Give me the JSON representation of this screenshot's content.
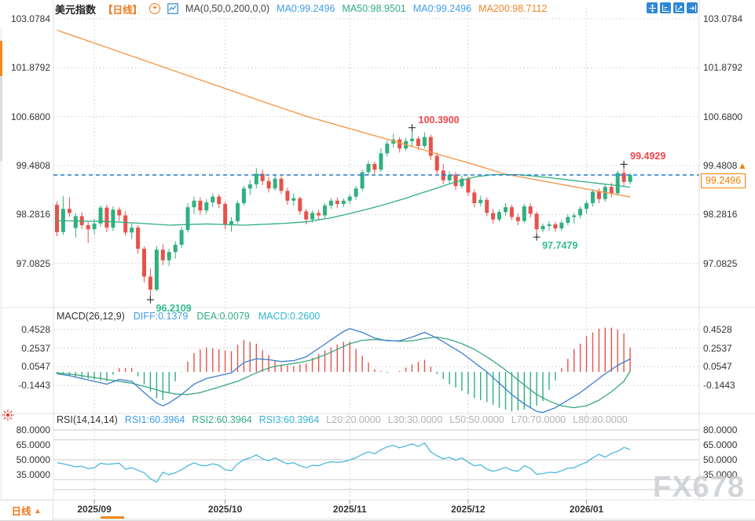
{
  "header": {
    "symbol": "美元指数",
    "period_tag": "【日线】",
    "add_icon": "+",
    "ma_settings": "MA(0,50,0,200,0,0)",
    "ma_values": [
      {
        "label": "MA0:99.2496",
        "color": "#3e9de6"
      },
      {
        "label": "MA50:98.9501",
        "color": "#2fae7d"
      },
      {
        "label": "MA0:99.2496",
        "color": "#3e9de6"
      },
      {
        "label": "MA200:98.7112",
        "color": "#f0862d"
      }
    ]
  },
  "toolbar": {
    "icons": [
      "pan-tool",
      "axis-scale-tool",
      "pointer-tool",
      "collapse-panel-tool"
    ]
  },
  "macd_header": {
    "title": "MACD(26,12,9)",
    "items": [
      {
        "label": "DIFF:0.1379",
        "color": "#3e9de6"
      },
      {
        "label": "DEA:0.0079",
        "color": "#2fae7d"
      },
      {
        "label": "MACD:0.2600",
        "color": "#2fb6d8"
      }
    ]
  },
  "rsi_header": {
    "title": "RSI(14,14,14)",
    "items": [
      {
        "label": "RSI1:60.3964",
        "color": "#3e9de6"
      },
      {
        "label": "RSI2:60.3964",
        "color": "#2fae7d"
      },
      {
        "label": "RSI3:60.3964",
        "color": "#2fb6d8"
      }
    ],
    "levels": [
      "L20:20.0000",
      "L30:30.0000",
      "L50:50.0000",
      "L70:70.0000",
      "L80:80.0000"
    ]
  },
  "footer": {
    "period_label": "日线",
    "arrow": "▲"
  },
  "watermark": "FX678",
  "current_price": {
    "label": "99.2496",
    "value": 99.2496
  },
  "chart_data": {
    "type": "candlestick",
    "panes": [
      "price",
      "MACD",
      "RSI"
    ],
    "colors": {
      "up": "#2fb07f",
      "down": "#e5534b",
      "ma50": "#2fae82",
      "ma200": "#f49a4c",
      "diff": "#3a7fd0",
      "dea": "#3aa87c",
      "rsi": "#3fb3dc",
      "price_line": "#1d7ad4",
      "hist_pos": "#e5534b",
      "hist_neg": "#2fb07f",
      "grid": "#cccccc",
      "accent_orange": "#f08000"
    },
    "price_axis": {
      "ticks": [
        103.0784,
        101.8792,
        100.68,
        99.4808,
        98.2816,
        97.0825
      ],
      "labels": [
        "103.0784",
        "101.8792",
        "100.6800",
        "99.4808",
        "98.2816",
        "97.0825"
      ]
    },
    "macd_axis": {
      "ticks": [
        0.4528,
        0.2537,
        0.0547,
        -0.1443
      ],
      "labels": [
        "0.4528",
        "0.2537",
        "0.0547",
        "-0.1443"
      ]
    },
    "rsi_axis": {
      "tick_values": [
        80,
        65,
        50,
        35
      ],
      "labels": [
        "80.0000",
        "65.0000",
        "50.0000",
        "35.0000"
      ],
      "grid_levels": [
        80,
        70,
        50,
        30,
        20
      ]
    },
    "months": [
      {
        "label": "2025/09",
        "index": 6
      },
      {
        "label": "2025/10",
        "index": 27
      },
      {
        "label": "2025/11",
        "index": 47
      },
      {
        "label": "2025/12",
        "index": 66
      },
      {
        "label": "2026/01",
        "index": 85
      }
    ],
    "candles": [
      [
        98.52,
        98.6,
        97.75,
        97.85
      ],
      [
        97.85,
        98.73,
        97.78,
        98.42
      ],
      [
        98.42,
        98.7,
        98.22,
        98.32
      ],
      [
        97.95,
        98.32,
        97.72,
        98.24
      ],
      [
        98.24,
        98.33,
        97.92,
        98.02
      ],
      [
        98.02,
        98.1,
        97.58,
        97.92
      ],
      [
        97.92,
        98.18,
        97.8,
        98.06
      ],
      [
        98.06,
        98.5,
        97.98,
        98.45
      ],
      [
        98.45,
        98.52,
        97.85,
        97.96
      ],
      [
        97.96,
        98.48,
        97.88,
        98.4
      ],
      [
        98.4,
        98.46,
        98.12,
        98.26
      ],
      [
        98.26,
        98.36,
        97.76,
        97.84
      ],
      [
        97.84,
        98.06,
        97.68,
        97.96
      ],
      [
        97.96,
        98.02,
        97.32,
        97.44
      ],
      [
        97.44,
        97.5,
        96.62,
        96.76
      ],
      [
        96.76,
        96.96,
        96.2109,
        96.44
      ],
      [
        96.44,
        97.5,
        96.4,
        97.42
      ],
      [
        97.42,
        97.56,
        97.04,
        97.16
      ],
      [
        97.16,
        97.44,
        97.02,
        97.36
      ],
      [
        97.36,
        97.62,
        97.2,
        97.54
      ],
      [
        97.54,
        97.98,
        97.46,
        97.9
      ],
      [
        97.9,
        98.56,
        97.84,
        98.46
      ],
      [
        98.46,
        98.72,
        98.3,
        98.62
      ],
      [
        98.62,
        98.7,
        98.28,
        98.38
      ],
      [
        98.38,
        98.66,
        98.3,
        98.58
      ],
      [
        98.58,
        98.8,
        98.46,
        98.72
      ],
      [
        98.72,
        98.78,
        98.44,
        98.54
      ],
      [
        98.54,
        98.6,
        97.92,
        98.04
      ],
      [
        98.04,
        98.22,
        97.86,
        98.12
      ],
      [
        98.12,
        98.62,
        98.06,
        98.56
      ],
      [
        98.56,
        98.98,
        98.5,
        98.92
      ],
      [
        98.92,
        99.12,
        98.76,
        99.02
      ],
      [
        99.02,
        99.42,
        98.92,
        99.28
      ],
      [
        99.28,
        99.38,
        99.0,
        99.1
      ],
      [
        99.1,
        99.2,
        98.82,
        98.92
      ],
      [
        98.92,
        99.26,
        98.86,
        99.16
      ],
      [
        99.16,
        99.22,
        98.78,
        98.86
      ],
      [
        98.86,
        98.94,
        98.52,
        98.62
      ],
      [
        98.62,
        98.8,
        98.5,
        98.68
      ],
      [
        98.68,
        98.72,
        98.28,
        98.36
      ],
      [
        98.36,
        98.42,
        98.04,
        98.16
      ],
      [
        98.16,
        98.38,
        98.08,
        98.32
      ],
      [
        98.32,
        98.4,
        98.14,
        98.26
      ],
      [
        98.26,
        98.56,
        98.2,
        98.5
      ],
      [
        98.5,
        98.68,
        98.42,
        98.62
      ],
      [
        98.62,
        98.7,
        98.44,
        98.54
      ],
      [
        98.54,
        98.68,
        98.46,
        98.62
      ],
      [
        98.62,
        98.78,
        98.54,
        98.72
      ],
      [
        98.72,
        98.98,
        98.64,
        98.92
      ],
      [
        98.92,
        99.38,
        98.86,
        99.32
      ],
      [
        99.32,
        99.6,
        99.24,
        99.52
      ],
      [
        99.52,
        99.58,
        99.28,
        99.38
      ],
      [
        99.38,
        99.9,
        99.32,
        99.78
      ],
      [
        99.78,
        100.1,
        99.7,
        100.02
      ],
      [
        100.02,
        100.26,
        99.92,
        100.12
      ],
      [
        100.12,
        100.18,
        99.8,
        99.9
      ],
      [
        99.9,
        100.16,
        99.84,
        100.08
      ],
      [
        100.08,
        100.39,
        99.96,
        100.14
      ],
      [
        100.14,
        100.2,
        99.86,
        99.96
      ],
      [
        99.96,
        100.3,
        99.9,
        100.18
      ],
      [
        100.18,
        100.24,
        99.62,
        99.72
      ],
      [
        99.72,
        99.8,
        99.28,
        99.36
      ],
      [
        99.36,
        99.52,
        99.02,
        99.12
      ],
      [
        99.12,
        99.34,
        99.04,
        99.26
      ],
      [
        99.26,
        99.32,
        98.88,
        98.98
      ],
      [
        98.98,
        99.24,
        98.92,
        99.16
      ],
      [
        99.16,
        99.22,
        98.74,
        98.82
      ],
      [
        98.82,
        98.9,
        98.46,
        98.56
      ],
      [
        98.56,
        98.74,
        98.48,
        98.64
      ],
      [
        98.64,
        98.7,
        98.24,
        98.32
      ],
      [
        98.32,
        98.42,
        98.06,
        98.16
      ],
      [
        98.16,
        98.4,
        98.1,
        98.34
      ],
      [
        98.34,
        98.56,
        98.26,
        98.46
      ],
      [
        98.46,
        98.52,
        98.14,
        98.22
      ],
      [
        98.22,
        98.3,
        98.02,
        98.12
      ],
      [
        98.12,
        98.54,
        98.08,
        98.48
      ],
      [
        98.48,
        98.56,
        98.2,
        98.3
      ],
      [
        98.3,
        98.36,
        97.7479,
        97.92
      ],
      [
        97.92,
        98.06,
        97.84,
        98.0
      ],
      [
        98.0,
        98.12,
        97.88,
        98.04
      ],
      [
        98.04,
        98.1,
        97.86,
        97.94
      ],
      [
        97.94,
        98.14,
        97.88,
        98.08
      ],
      [
        98.08,
        98.28,
        98.02,
        98.22
      ],
      [
        98.22,
        98.32,
        98.06,
        98.26
      ],
      [
        98.26,
        98.48,
        98.18,
        98.42
      ],
      [
        98.42,
        98.62,
        98.3,
        98.56
      ],
      [
        98.56,
        98.9,
        98.48,
        98.84
      ],
      [
        98.84,
        98.92,
        98.56,
        98.66
      ],
      [
        98.66,
        99.02,
        98.6,
        98.96
      ],
      [
        98.96,
        99.06,
        98.7,
        98.8
      ],
      [
        98.8,
        99.36,
        98.74,
        99.3
      ],
      [
        99.3,
        99.4929,
        98.98,
        99.08
      ],
      [
        99.08,
        99.3,
        99.02,
        99.2496
      ]
    ],
    "ma50_points": [
      [
        0,
        98.13
      ],
      [
        8,
        98.11
      ],
      [
        14,
        98.06
      ],
      [
        18,
        98.02
      ],
      [
        24,
        98.05
      ],
      [
        30,
        98.02
      ],
      [
        36,
        98.06
      ],
      [
        40,
        98.1
      ],
      [
        44,
        98.2
      ],
      [
        48,
        98.34
      ],
      [
        52,
        98.5
      ],
      [
        56,
        98.68
      ],
      [
        60,
        98.88
      ],
      [
        64,
        99.08
      ],
      [
        67,
        99.2
      ],
      [
        70,
        99.26
      ],
      [
        74,
        99.26
      ],
      [
        78,
        99.2
      ],
      [
        82,
        99.13
      ],
      [
        86,
        99.06
      ],
      [
        90,
        98.99
      ],
      [
        92,
        98.9501
      ]
    ],
    "ma200_points": [
      [
        0,
        102.8
      ],
      [
        10,
        102.27
      ],
      [
        20,
        101.74
      ],
      [
        27,
        101.37
      ],
      [
        34,
        101.0
      ],
      [
        40,
        100.69
      ],
      [
        46,
        100.43
      ],
      [
        52,
        100.17
      ],
      [
        57,
        99.95
      ],
      [
        62,
        99.72
      ],
      [
        66,
        99.55
      ],
      [
        72,
        99.27
      ],
      [
        77,
        99.13
      ],
      [
        82,
        98.99
      ],
      [
        87,
        98.85
      ],
      [
        92,
        98.7112
      ]
    ],
    "macd": {
      "histogram_rule": "2*(DIFF-DEA)",
      "diff_points": [
        [
          0,
          -0.02
        ],
        [
          2,
          -0.04
        ],
        [
          4,
          -0.07
        ],
        [
          6,
          -0.1
        ],
        [
          8,
          -0.13
        ],
        [
          10,
          -0.08
        ],
        [
          12,
          -0.1
        ],
        [
          14,
          -0.22
        ],
        [
          16,
          -0.33
        ],
        [
          17,
          -0.36
        ],
        [
          18,
          -0.33
        ],
        [
          20,
          -0.24
        ],
        [
          22,
          -0.13
        ],
        [
          24,
          -0.07
        ],
        [
          26,
          -0.04
        ],
        [
          28,
          -0.01
        ],
        [
          30,
          0.1
        ],
        [
          32,
          0.14
        ],
        [
          34,
          0.13
        ],
        [
          36,
          0.11
        ],
        [
          38,
          0.12
        ],
        [
          40,
          0.16
        ],
        [
          42,
          0.25
        ],
        [
          44,
          0.34
        ],
        [
          46,
          0.43
        ],
        [
          47,
          0.46
        ],
        [
          49,
          0.42
        ],
        [
          51,
          0.36
        ],
        [
          53,
          0.33
        ],
        [
          55,
          0.33
        ],
        [
          57,
          0.37
        ],
        [
          59,
          0.42
        ],
        [
          61,
          0.36
        ],
        [
          63,
          0.28
        ],
        [
          65,
          0.2
        ],
        [
          67,
          0.1
        ],
        [
          69,
          0.0
        ],
        [
          71,
          -0.12
        ],
        [
          73,
          -0.24
        ],
        [
          75,
          -0.34
        ],
        [
          77,
          -0.42
        ],
        [
          78,
          -0.43
        ],
        [
          80,
          -0.38
        ],
        [
          82,
          -0.3
        ],
        [
          84,
          -0.22
        ],
        [
          86,
          -0.12
        ],
        [
          88,
          -0.02
        ],
        [
          90,
          0.07
        ],
        [
          92,
          0.1379
        ]
      ],
      "dea_points": [
        [
          0,
          -0.01
        ],
        [
          3,
          -0.03
        ],
        [
          6,
          -0.06
        ],
        [
          9,
          -0.09
        ],
        [
          12,
          -0.12
        ],
        [
          15,
          -0.17
        ],
        [
          17,
          -0.21
        ],
        [
          19,
          -0.235
        ],
        [
          21,
          -0.24
        ],
        [
          23,
          -0.22
        ],
        [
          25,
          -0.18
        ],
        [
          27,
          -0.14
        ],
        [
          29,
          -0.1
        ],
        [
          31,
          -0.04
        ],
        [
          33,
          0.02
        ],
        [
          35,
          0.06
        ],
        [
          37,
          0.08
        ],
        [
          39,
          0.1
        ],
        [
          41,
          0.13
        ],
        [
          43,
          0.18
        ],
        [
          45,
          0.24
        ],
        [
          47,
          0.3
        ],
        [
          49,
          0.335
        ],
        [
          51,
          0.345
        ],
        [
          53,
          0.335
        ],
        [
          55,
          0.325
        ],
        [
          57,
          0.33
        ],
        [
          59,
          0.355
        ],
        [
          61,
          0.37
        ],
        [
          63,
          0.345
        ],
        [
          65,
          0.3
        ],
        [
          67,
          0.24
        ],
        [
          69,
          0.16
        ],
        [
          71,
          0.07
        ],
        [
          73,
          -0.03
        ],
        [
          75,
          -0.14
        ],
        [
          77,
          -0.24
        ],
        [
          79,
          -0.31
        ],
        [
          81,
          -0.36
        ],
        [
          83,
          -0.38
        ],
        [
          85,
          -0.36
        ],
        [
          87,
          -0.3
        ],
        [
          89,
          -0.21
        ],
        [
          91,
          -0.1
        ],
        [
          92,
          0.0079
        ]
      ]
    },
    "rsi_values": [
      47,
      46,
      44.5,
      43,
      43.5,
      41,
      42,
      46.5,
      45.5,
      46,
      46.5,
      40.5,
      42,
      39.5,
      37,
      31,
      27.5,
      37.5,
      35,
      37,
      40,
      44,
      47,
      44.5,
      44,
      46,
      44.5,
      40,
      39,
      46,
      50,
      52,
      55,
      51,
      49,
      52,
      48.5,
      46,
      47,
      44,
      42,
      44.5,
      44,
      46.5,
      48,
      47.5,
      48,
      50,
      52,
      55.5,
      58,
      56,
      60,
      63,
      64.5,
      62,
      64,
      66,
      63.5,
      67,
      58,
      54,
      51,
      52.5,
      49.5,
      52,
      47.5,
      44,
      45,
      40.5,
      38.5,
      40,
      42.5,
      39.5,
      38.5,
      44,
      41.5,
      35.5,
      36,
      37.5,
      37,
      39,
      41.5,
      42,
      45,
      47.5,
      52,
      55.5,
      52.5,
      56.5,
      58.5,
      62.5,
      60.3964
    ],
    "annotations": [
      {
        "id": "swing-high-nov",
        "label": "100.3900",
        "index": 57,
        "price": 100.39,
        "kind": "high",
        "color": "#f0474d"
      },
      {
        "id": "swing-high-jan",
        "label": "99.4929",
        "index": 91,
        "price": 99.4929,
        "kind": "high",
        "color": "#f0474d"
      },
      {
        "id": "swing-low-dec",
        "label": "97.7479",
        "index": 77,
        "price": 97.7479,
        "kind": "low",
        "color": "#2fbd8f"
      },
      {
        "id": "swing-low-sep",
        "label": "96.2109",
        "index": 15,
        "price": 96.2109,
        "kind": "low",
        "color": "#2fbd8f"
      }
    ]
  }
}
